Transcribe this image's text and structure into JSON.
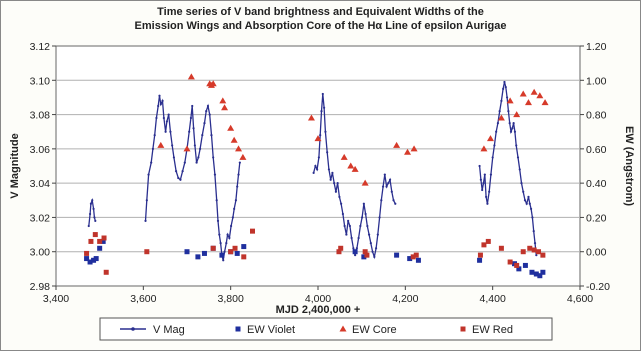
{
  "chart_data": {
    "type": "scatter",
    "title_lines": [
      "Time series of V band brightness and Equivalent Widths of the",
      "Emission Wings and Absorption Core of the Hα Line of epsilon Aurigae"
    ],
    "xlabel": "MJD 2,400,000 +",
    "ylabel": "V Magnitude",
    "y2label": "EW (Angstrom)",
    "xlim": [
      3400,
      4600
    ],
    "ylim": [
      2.98,
      3.12
    ],
    "y2lim": [
      -0.2,
      1.2
    ],
    "x_ticks": [
      "3,400",
      "3,600",
      "3,800",
      "4,000",
      "4,200",
      "4,400",
      "4,600"
    ],
    "y_ticks": [
      "2.98",
      "3.00",
      "3.02",
      "3.04",
      "3.06",
      "3.08",
      "3.10",
      "3.12"
    ],
    "y2_ticks": [
      "-0.20",
      "0.00",
      "0.20",
      "0.40",
      "0.60",
      "0.80",
      "1.00",
      "1.20"
    ],
    "grid": "horizontal",
    "legend_position": "bottom",
    "colors": {
      "vmag": "#2a2f8f",
      "violet": "#1f2f9e",
      "core": "#d63a2a",
      "red": "#c0342b"
    },
    "series": [
      {
        "name": "V Mag",
        "marker": "line",
        "axis": "left",
        "segments": [
          [
            [
              3475,
              3.015
            ],
            [
              3478,
              3.022
            ],
            [
              3480,
              3.028
            ],
            [
              3483,
              3.03
            ],
            [
              3486,
              3.025
            ],
            [
              3488,
              3.02
            ],
            [
              3490,
              3.018
            ]
          ],
          [
            [
              3605,
              3.018
            ],
            [
              3608,
              3.03
            ],
            [
              3612,
              3.045
            ],
            [
              3618,
              3.052
            ],
            [
              3622,
              3.06
            ],
            [
              3626,
              3.068
            ],
            [
              3630,
              3.078
            ],
            [
              3634,
              3.085
            ],
            [
              3637,
              3.091
            ],
            [
              3640,
              3.086
            ],
            [
              3644,
              3.088
            ],
            [
              3647,
              3.078
            ],
            [
              3651,
              3.07
            ],
            [
              3654,
              3.076
            ],
            [
              3658,
              3.08
            ],
            [
              3662,
              3.07
            ],
            [
              3666,
              3.062
            ],
            [
              3670,
              3.055
            ],
            [
              3675,
              3.047
            ],
            [
              3680,
              3.043
            ],
            [
              3685,
              3.042
            ],
            [
              3690,
              3.047
            ],
            [
              3695,
              3.052
            ],
            [
              3700,
              3.06
            ],
            [
              3705,
              3.07
            ],
            [
              3709,
              3.078
            ],
            [
              3712,
              3.085
            ],
            [
              3715,
              3.072
            ],
            [
              3718,
              3.062
            ],
            [
              3722,
              3.052
            ],
            [
              3726,
              3.055
            ],
            [
              3730,
              3.06
            ],
            [
              3735,
              3.068
            ],
            [
              3740,
              3.075
            ],
            [
              3744,
              3.082
            ],
            [
              3748,
              3.085
            ],
            [
              3752,
              3.08
            ],
            [
              3756,
              3.068
            ],
            [
              3760,
              3.055
            ],
            [
              3764,
              3.045
            ],
            [
              3768,
              3.03
            ],
            [
              3771,
              3.018
            ],
            [
              3774,
              3.01
            ],
            [
              3777,
              3.005
            ],
            [
              3780,
              2.998
            ],
            [
              3783,
              2.995
            ],
            [
              3786,
              3.0
            ],
            [
              3790,
              3.005
            ],
            [
              3793,
              3.01
            ],
            [
              3797,
              3.008
            ],
            [
              3801,
              3.015
            ],
            [
              3805,
              3.02
            ],
            [
              3808,
              3.025
            ],
            [
              3812,
              3.03
            ],
            [
              3815,
              3.038
            ],
            [
              3818,
              3.045
            ],
            [
              3821,
              3.052
            ]
          ],
          [
            [
              3990,
              3.046
            ],
            [
              3994,
              3.05
            ],
            [
              3998,
              3.048
            ],
            [
              4002,
              3.055
            ],
            [
              4005,
              3.068
            ],
            [
              4008,
              3.082
            ],
            [
              4011,
              3.092
            ],
            [
              4014,
              3.084
            ],
            [
              4017,
              3.07
            ],
            [
              4021,
              3.058
            ],
            [
              4025,
              3.048
            ],
            [
              4029,
              3.042
            ],
            [
              4033,
              3.046
            ],
            [
              4037,
              3.04
            ],
            [
              4041,
              3.035
            ],
            [
              4045,
              3.04
            ],
            [
              4049,
              3.032
            ],
            [
              4053,
              3.028
            ],
            [
              4057,
              3.022
            ],
            [
              4061,
              3.015
            ],
            [
              4065,
              3.01
            ],
            [
              4069,
              3.018
            ],
            [
              4073,
              3.015
            ],
            [
              4077,
              3.008
            ],
            [
              4081,
              3.002
            ],
            [
              4085,
              2.998
            ],
            [
              4089,
              3.002
            ],
            [
              4093,
              3.008
            ],
            [
              4097,
              3.015
            ],
            [
              4101,
              3.02
            ],
            [
              4105,
              3.028
            ],
            [
              4109,
              3.022
            ],
            [
              4113,
              3.015
            ],
            [
              4117,
              3.01
            ],
            [
              4121,
              3.005
            ],
            [
              4125,
              3.0
            ],
            [
              4129,
              2.997
            ],
            [
              4133,
              3.002
            ],
            [
              4137,
              3.01
            ],
            [
              4141,
              3.02
            ],
            [
              4145,
              3.03
            ],
            [
              4149,
              3.038
            ],
            [
              4153,
              3.045
            ],
            [
              4157,
              3.038
            ],
            [
              4161,
              3.04
            ],
            [
              4165,
              3.042
            ],
            [
              4169,
              3.035
            ],
            [
              4173,
              3.03
            ],
            [
              4177,
              3.028
            ]
          ],
          [
            [
              4370,
              3.05
            ],
            [
              4373,
              3.042
            ],
            [
              4376,
              3.036
            ],
            [
              4379,
              3.04
            ],
            [
              4382,
              3.045
            ],
            [
              4385,
              3.032
            ],
            [
              4388,
              3.028
            ],
            [
              4392,
              3.035
            ],
            [
              4396,
              3.045
            ],
            [
              4400,
              3.055
            ],
            [
              4404,
              3.062
            ],
            [
              4408,
              3.07
            ],
            [
              4412,
              3.075
            ],
            [
              4416,
              3.082
            ],
            [
              4420,
              3.088
            ],
            [
              4424,
              3.095
            ],
            [
              4427,
              3.099
            ],
            [
              4430,
              3.096
            ],
            [
              4433,
              3.09
            ],
            [
              4436,
              3.082
            ],
            [
              4439,
              3.075
            ],
            [
              4442,
              3.07
            ],
            [
              4445,
              3.072
            ],
            [
              4448,
              3.075
            ],
            [
              4451,
              3.07
            ],
            [
              4454,
              3.062
            ],
            [
              4458,
              3.055
            ],
            [
              4462,
              3.048
            ],
            [
              4466,
              3.04
            ],
            [
              4470,
              3.035
            ],
            [
              4474,
              3.03
            ],
            [
              4478,
              3.028
            ],
            [
              4482,
              3.032
            ],
            [
              4485,
              3.028
            ],
            [
              4488,
              3.025
            ],
            [
              4491,
              3.02
            ],
            [
              4494,
              3.012
            ],
            [
              4497,
              3.005
            ],
            [
              4500,
              2.998
            ]
          ]
        ]
      },
      {
        "name": "EW Violet",
        "marker": "square",
        "axis": "right",
        "points": [
          [
            3470,
            -0.04
          ],
          [
            3478,
            -0.06
          ],
          [
            3486,
            -0.05
          ],
          [
            3492,
            -0.04
          ],
          [
            3500,
            0.02
          ],
          [
            3508,
            0.06
          ],
          [
            3700,
            0.0
          ],
          [
            3725,
            -0.03
          ],
          [
            3740,
            -0.01
          ],
          [
            3760,
            0.02
          ],
          [
            3780,
            -0.02
          ],
          [
            3800,
            0.0
          ],
          [
            3815,
            -0.01
          ],
          [
            3830,
            0.03
          ],
          [
            4085,
            0.0
          ],
          [
            4105,
            -0.03
          ],
          [
            4180,
            -0.02
          ],
          [
            4210,
            -0.04
          ],
          [
            4230,
            -0.05
          ],
          [
            4370,
            -0.05
          ],
          [
            4450,
            -0.07
          ],
          [
            4460,
            -0.1
          ],
          [
            4475,
            -0.08
          ],
          [
            4490,
            -0.12
          ],
          [
            4500,
            -0.13
          ],
          [
            4508,
            -0.14
          ],
          [
            4515,
            -0.12
          ]
        ]
      },
      {
        "name": "EW Core",
        "marker": "triangle",
        "axis": "right",
        "points": [
          [
            3640,
            0.62
          ],
          [
            3700,
            0.6
          ],
          [
            3710,
            1.02
          ],
          [
            3752,
            0.98
          ],
          [
            3756,
            0.97
          ],
          [
            3760,
            0.98
          ],
          [
            3782,
            0.88
          ],
          [
            3786,
            0.84
          ],
          [
            3800,
            0.72
          ],
          [
            3808,
            0.65
          ],
          [
            3818,
            0.6
          ],
          [
            3828,
            0.55
          ],
          [
            3985,
            0.78
          ],
          [
            4000,
            0.66
          ],
          [
            4060,
            0.55
          ],
          [
            4075,
            0.5
          ],
          [
            4085,
            0.48
          ],
          [
            4108,
            0.4
          ],
          [
            4180,
            0.62
          ],
          [
            4205,
            0.58
          ],
          [
            4220,
            0.6
          ],
          [
            4380,
            0.6
          ],
          [
            4395,
            0.66
          ],
          [
            4420,
            0.78
          ],
          [
            4440,
            0.88
          ],
          [
            4455,
            0.8
          ],
          [
            4470,
            0.92
          ],
          [
            4482,
            0.87
          ],
          [
            4495,
            0.93
          ],
          [
            4508,
            0.91
          ],
          [
            4520,
            0.87
          ]
        ]
      },
      {
        "name": "EW Red",
        "marker": "square",
        "axis": "right",
        "points": [
          [
            3470,
            -0.01
          ],
          [
            3480,
            0.06
          ],
          [
            3490,
            0.1
          ],
          [
            3500,
            0.06
          ],
          [
            3510,
            0.08
          ],
          [
            3515,
            -0.12
          ],
          [
            3608,
            0.0
          ],
          [
            3760,
            0.02
          ],
          [
            3800,
            0.0
          ],
          [
            3810,
            0.02
          ],
          [
            3830,
            -0.03
          ],
          [
            3850,
            0.12
          ],
          [
            4048,
            0.0
          ],
          [
            4052,
            0.02
          ],
          [
            4108,
            0.0
          ],
          [
            4112,
            -0.02
          ],
          [
            4218,
            -0.03
          ],
          [
            4225,
            -0.02
          ],
          [
            4372,
            -0.02
          ],
          [
            4380,
            0.04
          ],
          [
            4390,
            0.06
          ],
          [
            4420,
            0.02
          ],
          [
            4440,
            -0.06
          ],
          [
            4455,
            -0.08
          ],
          [
            4470,
            0.0
          ],
          [
            4485,
            0.02
          ],
          [
            4495,
            0.01
          ],
          [
            4505,
            0.0
          ],
          [
            4515,
            -0.02
          ]
        ]
      }
    ]
  }
}
